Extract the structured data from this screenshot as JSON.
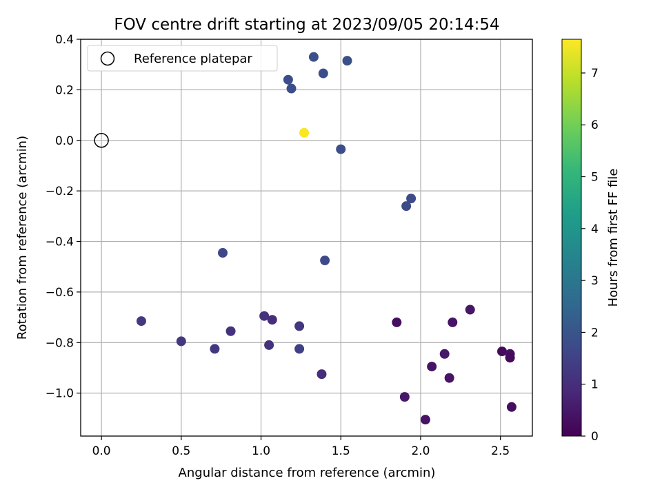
{
  "chart_data": {
    "type": "scatter",
    "title": "FOV centre drift starting at 2023/09/05 20:14:54",
    "xlabel": "Angular distance from reference (arcmin)",
    "ylabel": "Rotation from reference (arcmin)",
    "xlim": [
      -0.13,
      2.7
    ],
    "ylim": [
      -1.17,
      0.4
    ],
    "xticks": [
      0.0,
      0.5,
      1.0,
      1.5,
      2.0,
      2.5
    ],
    "xtick_labels": [
      "0.0",
      "0.5",
      "1.0",
      "1.5",
      "2.0",
      "2.5"
    ],
    "yticks": [
      0.4,
      0.2,
      0.0,
      -0.2,
      -0.4,
      -0.6,
      -0.8,
      -1.0
    ],
    "ytick_labels": [
      "0.4",
      "0.2",
      "0.0",
      "−0.2",
      "−0.4",
      "−0.6",
      "−0.8",
      "−1.0"
    ],
    "grid": true,
    "legend": {
      "location": "upper-left",
      "label": "Reference platepar"
    },
    "reference_point": {
      "x": 0.0,
      "y": 0.0
    },
    "colorbar": {
      "label": "Hours from first FF file",
      "range": [
        0,
        7.65
      ],
      "ticks": [
        0,
        1,
        2,
        3,
        4,
        5,
        6,
        7
      ],
      "tick_labels": [
        "0",
        "1",
        "2",
        "3",
        "4",
        "5",
        "6",
        "7"
      ],
      "colormap": [
        "#440154",
        "#482878",
        "#3e4989",
        "#31688e",
        "#26828e",
        "#1f9e89",
        "#35b779",
        "#6ece58",
        "#b5de2b",
        "#fde725"
      ]
    },
    "points": [
      {
        "x": 1.27,
        "y": 0.03,
        "c": 7.6
      },
      {
        "x": 1.33,
        "y": 0.33,
        "c": 1.9
      },
      {
        "x": 1.54,
        "y": 0.315,
        "c": 1.9
      },
      {
        "x": 1.39,
        "y": 0.265,
        "c": 1.85
      },
      {
        "x": 1.17,
        "y": 0.24,
        "c": 1.85
      },
      {
        "x": 1.19,
        "y": 0.205,
        "c": 1.85
      },
      {
        "x": 1.5,
        "y": -0.035,
        "c": 1.8
      },
      {
        "x": 1.94,
        "y": -0.23,
        "c": 1.75
      },
      {
        "x": 1.91,
        "y": -0.26,
        "c": 1.75
      },
      {
        "x": 0.76,
        "y": -0.445,
        "c": 1.65
      },
      {
        "x": 1.4,
        "y": -0.475,
        "c": 1.7
      },
      {
        "x": 0.25,
        "y": -0.715,
        "c": 1.3
      },
      {
        "x": 0.5,
        "y": -0.795,
        "c": 1.25
      },
      {
        "x": 0.71,
        "y": -0.825,
        "c": 1.25
      },
      {
        "x": 0.81,
        "y": -0.755,
        "c": 1.1
      },
      {
        "x": 1.02,
        "y": -0.695,
        "c": 1.1
      },
      {
        "x": 1.07,
        "y": -0.71,
        "c": 1.0
      },
      {
        "x": 1.05,
        "y": -0.81,
        "c": 1.1
      },
      {
        "x": 1.24,
        "y": -0.735,
        "c": 1.2
      },
      {
        "x": 1.24,
        "y": -0.825,
        "c": 1.5
      },
      {
        "x": 1.38,
        "y": -0.925,
        "c": 1.0
      },
      {
        "x": 1.85,
        "y": -0.72,
        "c": 0.3
      },
      {
        "x": 1.9,
        "y": -1.015,
        "c": 0.5
      },
      {
        "x": 2.03,
        "y": -1.105,
        "c": 0.4
      },
      {
        "x": 2.07,
        "y": -0.895,
        "c": 0.4
      },
      {
        "x": 2.15,
        "y": -0.845,
        "c": 0.5
      },
      {
        "x": 2.18,
        "y": -0.94,
        "c": 0.4
      },
      {
        "x": 2.2,
        "y": -0.72,
        "c": 0.4
      },
      {
        "x": 2.31,
        "y": -0.67,
        "c": 0.45
      },
      {
        "x": 2.51,
        "y": -0.835,
        "c": 0.2
      },
      {
        "x": 2.56,
        "y": -0.845,
        "c": 0.3
      },
      {
        "x": 2.56,
        "y": -0.86,
        "c": 0.2
      },
      {
        "x": 2.57,
        "y": -1.055,
        "c": 0.3
      }
    ]
  }
}
